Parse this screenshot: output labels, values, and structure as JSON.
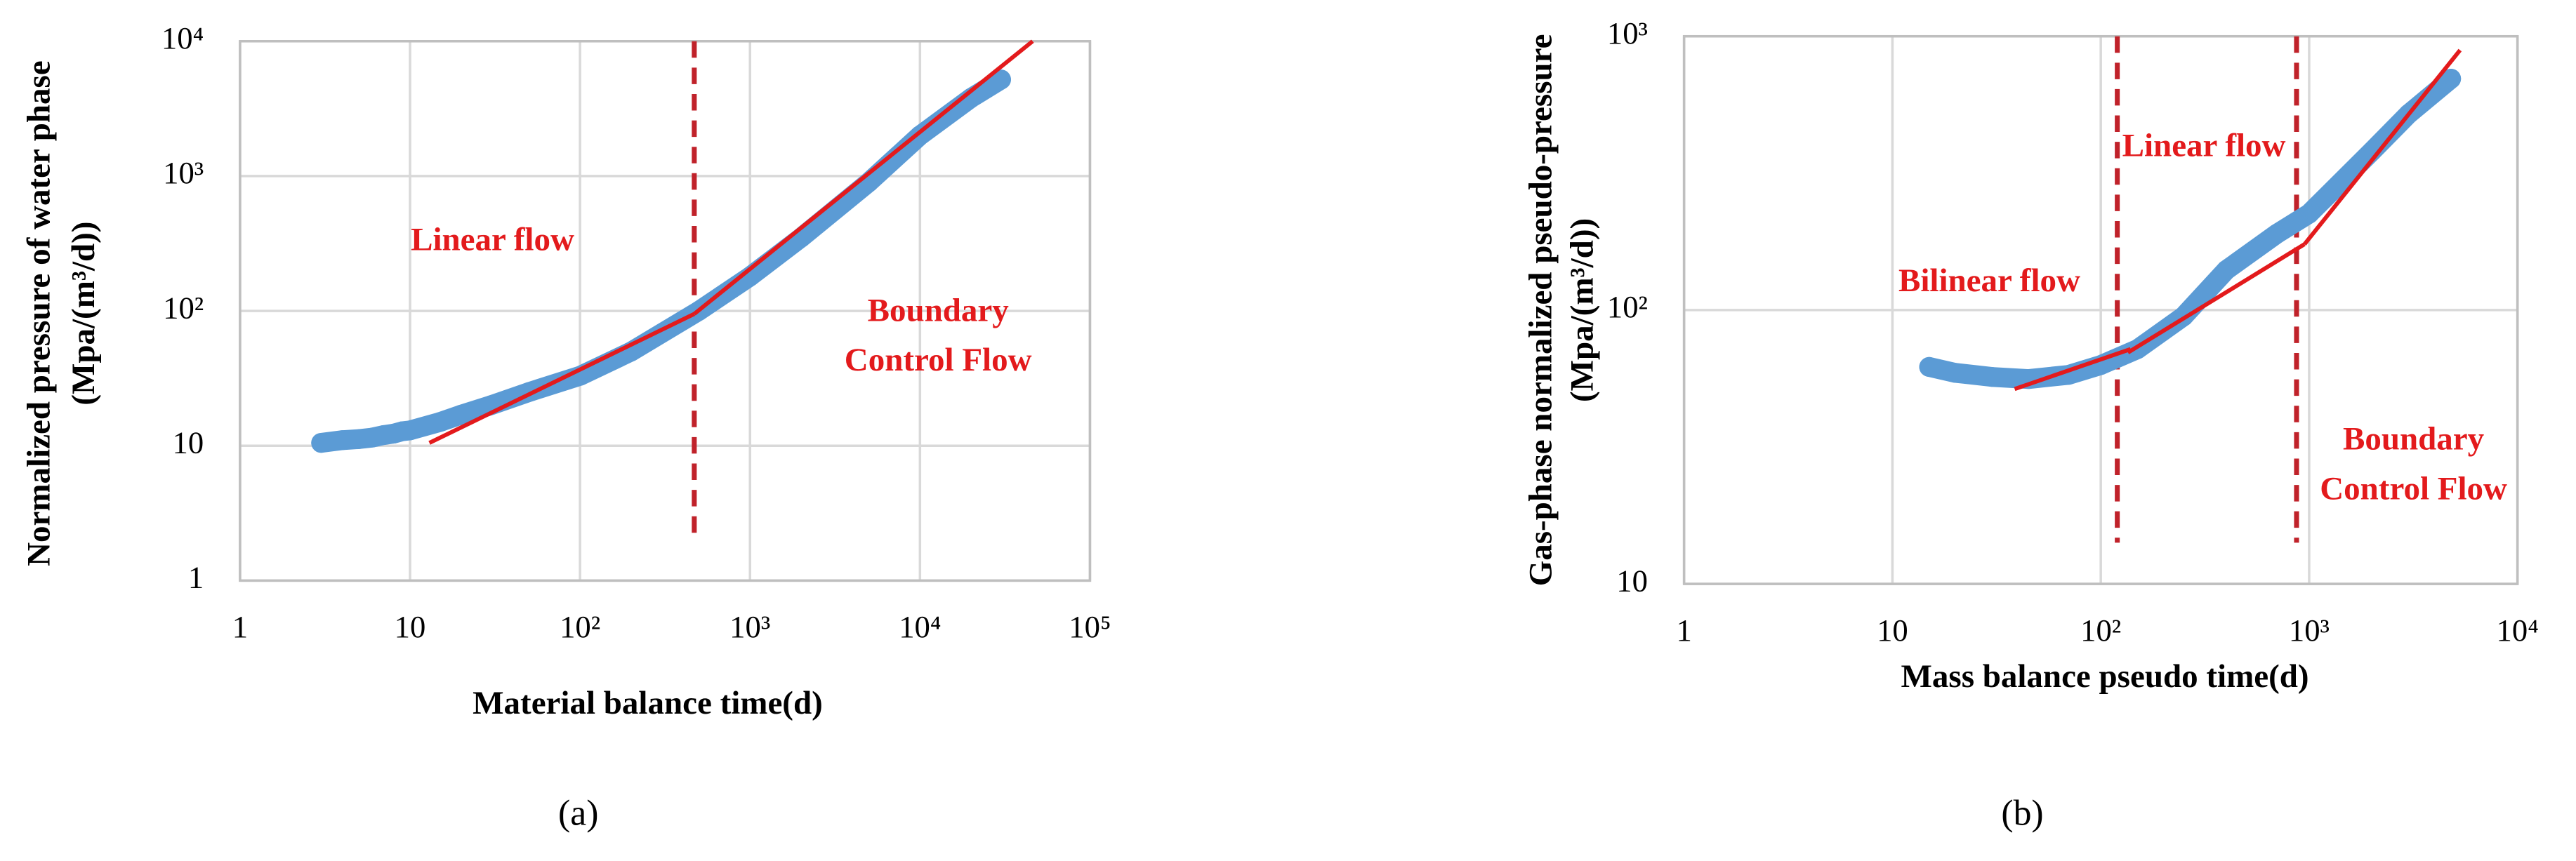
{
  "chart_data": [
    {
      "type": "scatter",
      "caption": "(a)",
      "x_label": "Material balance time(d)",
      "y_label": [
        "Normalized pressure of water phase",
        "(Mpa/(m³/d))"
      ],
      "log_x": true,
      "log_y": true,
      "grid": true,
      "xlim": [
        1,
        100000
      ],
      "ylim": [
        1,
        10000
      ],
      "xticks": [
        1,
        10,
        {
          "value": 100,
          "label": "10²"
        },
        {
          "value": 1000,
          "label": "10³"
        },
        {
          "value": 10000,
          "label": "10⁴"
        },
        {
          "value": 100000,
          "label": "10⁵"
        }
      ],
      "yticks": [
        1,
        10,
        {
          "value": 100,
          "label": "10²"
        },
        {
          "value": 1000,
          "label": "10³"
        },
        {
          "value": 10000,
          "label": "10⁴"
        }
      ],
      "series": [
        {
          "style": "markers",
          "color": "#5b9bd5",
          "x": [
            3,
            4,
            5,
            6,
            7,
            8,
            9,
            10,
            15,
            20,
            30,
            50,
            100,
            200,
            500,
            1000,
            2000,
            5000,
            10000,
            20000,
            30000
          ],
          "values": [
            10.5,
            11,
            11.2,
            11.5,
            12,
            12.3,
            12.8,
            13,
            15,
            17,
            20,
            25,
            33,
            50,
            100,
            180,
            350,
            900,
            2000,
            3800,
            5200
          ]
        },
        {
          "style": "line",
          "color": "#e31a1c",
          "x": [
            13,
            470
          ],
          "values": [
            10.5,
            95
          ]
        },
        {
          "style": "line",
          "color": "#e31a1c",
          "x": [
            470,
            46000
          ],
          "values": [
            95,
            10000
          ]
        }
      ],
      "vlines": [
        470
      ],
      "vline_color": "#c0222a",
      "annotations": [
        [
          "Linear flow"
        ],
        [
          "Boundary",
          "Control Flow"
        ]
      ],
      "annotation_color": "#e31a1c"
    },
    {
      "type": "scatter",
      "caption": "(b)",
      "x_label": "Mass balance pseudo time(d)",
      "y_label": [
        "Gas-phase normalized pseudo-pressure",
        "(Mpa/(m³/d))"
      ],
      "log_x": true,
      "log_y": true,
      "grid": true,
      "xlim": [
        1,
        10000
      ],
      "ylim": [
        10,
        1000
      ],
      "xticks": [
        1,
        10,
        {
          "value": 100,
          "label": "10²"
        },
        {
          "value": 1000,
          "label": "10³"
        },
        {
          "value": 10000,
          "label": "10⁴"
        }
      ],
      "yticks": [
        10,
        {
          "value": 100,
          "label": "10²"
        },
        {
          "value": 1000,
          "label": "10³"
        }
      ],
      "series": [
        {
          "style": "markers",
          "color": "#5b9bd5",
          "x": [
            15,
            20,
            30,
            45,
            70,
            100,
            150,
            250,
            400,
            700,
            1000,
            2000,
            3000,
            4800
          ],
          "values": [
            62,
            59,
            57,
            56,
            58,
            63,
            72,
            95,
            140,
            190,
            225,
            380,
            520,
            700
          ]
        },
        {
          "style": "line",
          "color": "#e31a1c",
          "x": [
            38.6,
            139
          ],
          "values": [
            51.5,
            72
          ]
        },
        {
          "style": "line",
          "color": "#e31a1c",
          "x": [
            135,
            950
          ],
          "values": [
            70,
            174
          ]
        },
        {
          "style": "line",
          "color": "#e31a1c",
          "x": [
            950,
            5300
          ],
          "values": [
            174,
            890
          ]
        }
      ],
      "vlines": [
        120,
        870
      ],
      "vline_color": "#c0222a",
      "annotations": [
        [
          "Linear flow"
        ],
        [
          "Bilinear flow"
        ],
        [
          "Boundary",
          "Control Flow"
        ]
      ],
      "annotation_color": "#e31a1c"
    }
  ]
}
